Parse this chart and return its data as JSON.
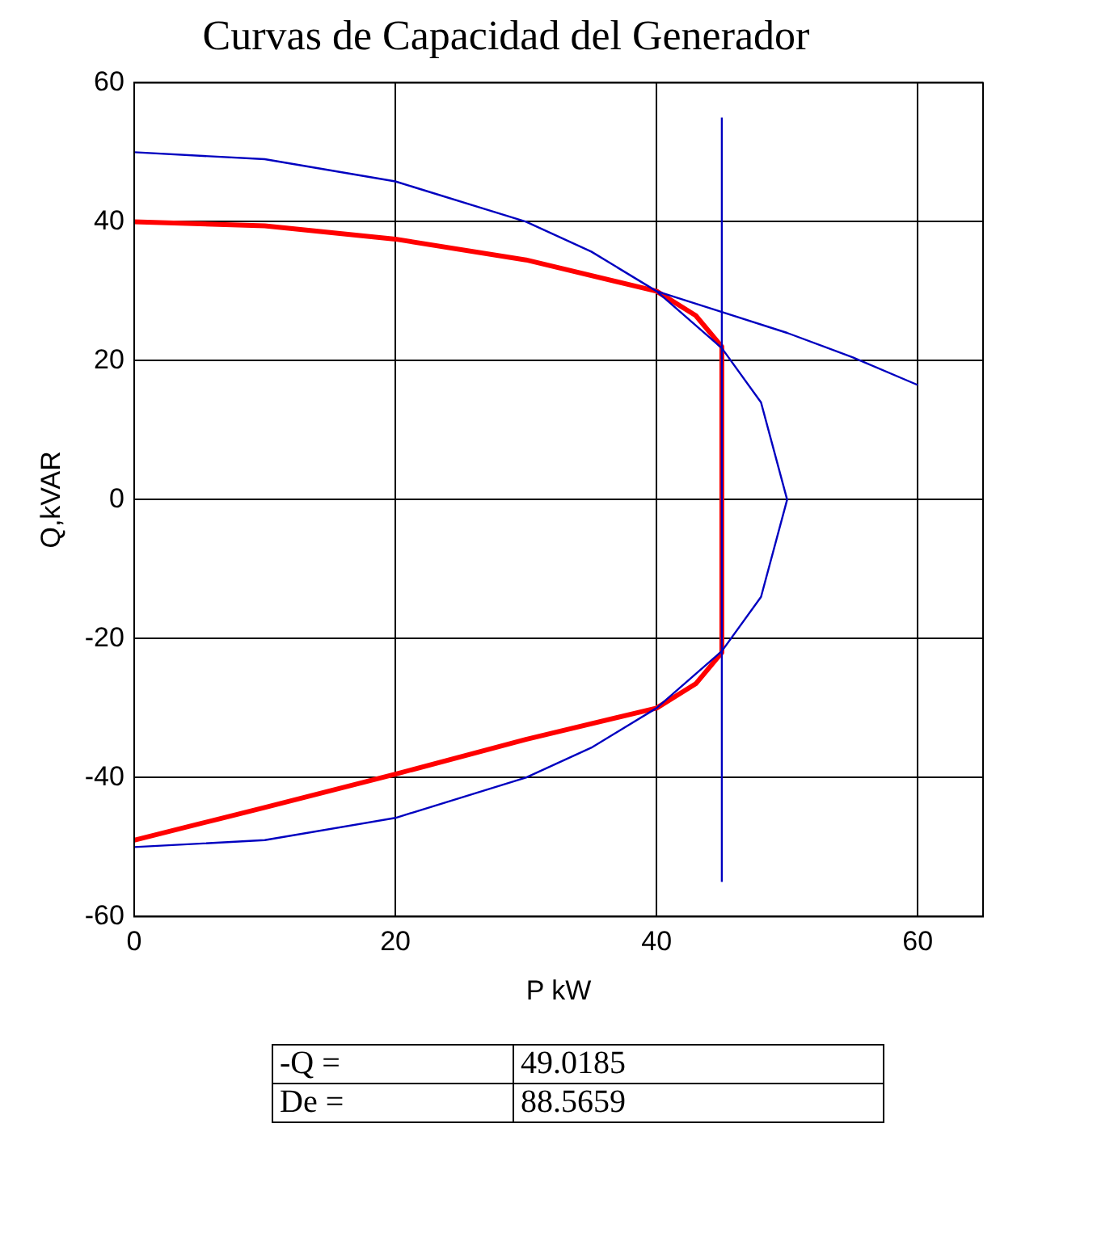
{
  "chart_data": {
    "type": "line",
    "title": "Curvas de Capacidad del Generador",
    "xlabel": "P kW",
    "ylabel": "Q,kVAR",
    "xlim": [
      0,
      65
    ],
    "xticks": [
      0,
      20,
      40,
      60
    ],
    "ylim": [
      -60,
      60
    ],
    "yticks": [
      -60,
      -40,
      -20,
      0,
      20,
      40,
      60
    ],
    "grid": true,
    "legend": false,
    "series": [
      {
        "color": "#0000c0",
        "x": [
          0,
          10,
          20,
          30,
          35,
          40,
          45,
          48,
          50,
          48,
          45,
          40,
          35,
          30,
          20,
          10,
          0
        ],
        "values": [
          50,
          49,
          45.8,
          40,
          35.7,
          30,
          21.8,
          14,
          0,
          -14,
          -21.8,
          -30,
          -35.7,
          -40,
          -45.8,
          -49,
          -50
        ]
      },
      {
        "color": "#0000c0",
        "x": [
          40,
          45,
          50,
          55,
          60
        ],
        "values": [
          30,
          27,
          24,
          20.5,
          16.5
        ]
      },
      {
        "color": "#0000c0",
        "x": [
          45,
          45
        ],
        "values": [
          -55,
          55
        ]
      },
      {
        "color": "#ff0000",
        "x": [
          0,
          10,
          20,
          30,
          40,
          43,
          45,
          45,
          43,
          40,
          30,
          20,
          10,
          0
        ],
        "values": [
          40,
          39.4,
          37.5,
          34.5,
          30,
          26.5,
          22,
          -22,
          -26.5,
          -30,
          -34.5,
          -39.5,
          -44.3,
          -49
        ]
      }
    ],
    "annotations": [
      "-Q =",
      "49.0185",
      "De =",
      "88.5659"
    ]
  }
}
